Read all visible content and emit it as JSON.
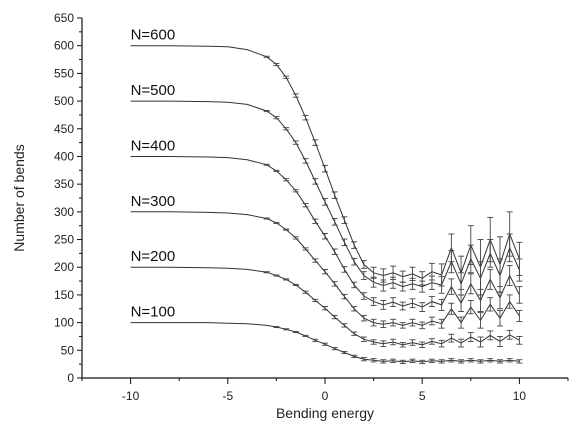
{
  "chart_data": {
    "type": "line",
    "title": "",
    "xlabel": "Bending energy",
    "ylabel": "Number of bends",
    "xlim": [
      -12.5,
      12.5
    ],
    "ylim": [
      0,
      650
    ],
    "xticks": [
      -10,
      -5,
      0,
      5,
      10
    ],
    "yticks": [
      0,
      50,
      100,
      150,
      200,
      250,
      300,
      350,
      400,
      450,
      500,
      550,
      600,
      650
    ],
    "grid": false,
    "legend": "inline labels left of each curve",
    "series": [
      {
        "name": "N=600",
        "x": [
          -10,
          -8,
          -6,
          -5,
          -4,
          -3,
          -2.5,
          -2,
          -1.5,
          -1,
          -0.5,
          0,
          0.5,
          1,
          1.5,
          2,
          2.5,
          3,
          3.5,
          4,
          4.5,
          5,
          5.5,
          6,
          6.5,
          7,
          7.5,
          8,
          8.5,
          9,
          9.5,
          10
        ],
        "y": [
          600,
          600,
          599,
          598,
          593,
          580,
          566,
          543,
          510,
          470,
          425,
          378,
          330,
          285,
          240,
          205,
          190,
          185,
          190,
          183,
          188,
          180,
          192,
          186,
          235,
          190,
          240,
          200,
          250,
          205,
          260,
          215
        ],
        "err": [
          0,
          0,
          0,
          0,
          0,
          1,
          2,
          2,
          3,
          4,
          5,
          6,
          6,
          6,
          6,
          7,
          10,
          12,
          12,
          10,
          12,
          12,
          15,
          20,
          25,
          30,
          35,
          50,
          40,
          50,
          40,
          30
        ]
      },
      {
        "name": "N=500",
        "x": [
          -10,
          -8,
          -6,
          -5,
          -4,
          -3,
          -2.5,
          -2,
          -1.5,
          -1,
          -0.5,
          0,
          0.5,
          1,
          1.5,
          2,
          2.5,
          3,
          3.5,
          4,
          4.5,
          5,
          5.5,
          6,
          6.5,
          7,
          7.5,
          8,
          8.5,
          9,
          9.5,
          10
        ],
        "y": [
          500,
          500,
          499,
          498,
          494,
          482,
          470,
          450,
          425,
          392,
          355,
          318,
          282,
          245,
          210,
          185,
          173,
          167,
          172,
          165,
          170,
          165,
          172,
          168,
          210,
          170,
          215,
          180,
          225,
          185,
          235,
          195
        ],
        "err": [
          0,
          0,
          0,
          0,
          0,
          1,
          2,
          2,
          3,
          4,
          5,
          6,
          6,
          6,
          6,
          7,
          9,
          10,
          10,
          8,
          10,
          10,
          12,
          15,
          20,
          20,
          25,
          30,
          25,
          30,
          25,
          20
        ]
      },
      {
        "name": "N=400",
        "x": [
          -10,
          -8,
          -6,
          -5,
          -4,
          -3,
          -2.5,
          -2,
          -1.5,
          -1,
          -0.5,
          0,
          0.5,
          1,
          1.5,
          2,
          2.5,
          3,
          3.5,
          4,
          4.5,
          5,
          5.5,
          6,
          6.5,
          7,
          7.5,
          8,
          8.5,
          9,
          9.5,
          10
        ],
        "y": [
          400,
          400,
          399,
          398,
          394,
          385,
          374,
          358,
          338,
          312,
          283,
          256,
          228,
          196,
          168,
          148,
          138,
          132,
          137,
          130,
          135,
          128,
          138,
          132,
          165,
          135,
          170,
          140,
          178,
          145,
          185,
          150
        ],
        "err": [
          0,
          0,
          0,
          0,
          0,
          1,
          1,
          2,
          2,
          3,
          4,
          5,
          5,
          5,
          5,
          6,
          7,
          8,
          8,
          7,
          8,
          8,
          9,
          10,
          14,
          15,
          18,
          20,
          18,
          20,
          18,
          15
        ]
      },
      {
        "name": "N=300",
        "x": [
          -10,
          -8,
          -6,
          -5,
          -4,
          -3,
          -2.5,
          -2,
          -1.5,
          -1,
          -0.5,
          0,
          0.5,
          1,
          1.5,
          2,
          2.5,
          3,
          3.5,
          4,
          4.5,
          5,
          5.5,
          6,
          6.5,
          7,
          7.5,
          8,
          8.5,
          9,
          9.5,
          10
        ],
        "y": [
          300,
          300,
          299,
          298,
          295,
          288,
          280,
          268,
          253,
          233,
          212,
          192,
          170,
          147,
          125,
          108,
          100,
          97,
          100,
          95,
          100,
          95,
          103,
          98,
          125,
          100,
          128,
          104,
          133,
          108,
          138,
          112
        ],
        "err": [
          0,
          0,
          0,
          0,
          0,
          1,
          1,
          1,
          2,
          2,
          3,
          4,
          4,
          4,
          4,
          5,
          6,
          6,
          6,
          5,
          6,
          6,
          7,
          8,
          10,
          10,
          12,
          14,
          12,
          14,
          12,
          10
        ]
      },
      {
        "name": "N=200",
        "x": [
          -10,
          -8,
          -6,
          -5,
          -4,
          -3,
          -2.5,
          -2,
          -1.5,
          -1,
          -0.5,
          0,
          0.5,
          1,
          1.5,
          2,
          2.5,
          3,
          3.5,
          4,
          4.5,
          5,
          5.5,
          6,
          6.5,
          7,
          7.5,
          8,
          8.5,
          9,
          9.5,
          10
        ],
        "y": [
          200,
          200,
          199,
          198,
          196,
          191,
          185,
          178,
          168,
          155,
          140,
          126,
          110,
          95,
          80,
          70,
          65,
          62,
          65,
          60,
          64,
          60,
          66,
          62,
          72,
          63,
          74,
          65,
          77,
          66,
          78,
          68
        ],
        "err": [
          0,
          0,
          0,
          0,
          0,
          1,
          1,
          1,
          1,
          2,
          2,
          3,
          3,
          3,
          3,
          4,
          4,
          5,
          5,
          4,
          5,
          5,
          5,
          6,
          7,
          7,
          8,
          9,
          8,
          9,
          8,
          7
        ]
      },
      {
        "name": "N=100",
        "x": [
          -10,
          -8,
          -6,
          -5,
          -4,
          -3,
          -2.5,
          -2,
          -1.5,
          -1,
          -0.5,
          0,
          0.5,
          1,
          1.5,
          2,
          2.5,
          3,
          3.5,
          4,
          4.5,
          5,
          5.5,
          6,
          6.5,
          7,
          7.5,
          8,
          8.5,
          9,
          9.5,
          10
        ],
        "y": [
          100,
          100,
          100,
          99,
          98,
          95,
          92,
          88,
          83,
          76,
          68,
          61,
          53,
          46,
          39,
          34,
          32,
          30,
          31,
          29,
          31,
          29,
          31,
          30,
          32,
          30,
          32,
          30,
          32,
          30,
          32,
          30
        ],
        "err": [
          0,
          0,
          0,
          0,
          0,
          0,
          1,
          1,
          1,
          1,
          2,
          2,
          2,
          2,
          2,
          3,
          3,
          3,
          3,
          3,
          3,
          3,
          3,
          3,
          3,
          3,
          3,
          3,
          3,
          3,
          3,
          3
        ]
      }
    ]
  }
}
